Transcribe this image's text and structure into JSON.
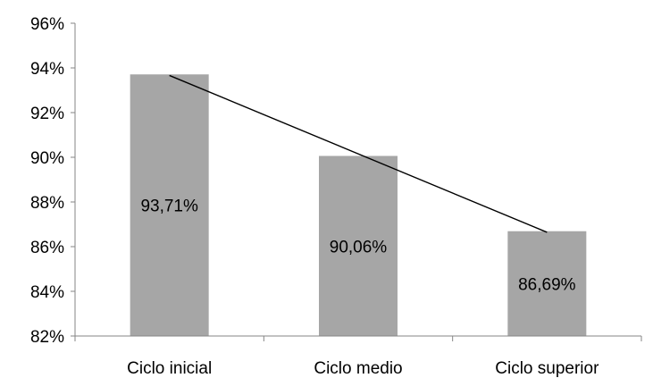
{
  "chart_data": {
    "type": "bar",
    "title": "",
    "xlabel": "",
    "ylabel": "",
    "categories": [
      "Ciclo inicial",
      "Ciclo medio",
      "Ciclo superior"
    ],
    "values": [
      93.71,
      90.06,
      86.69
    ],
    "data_labels": [
      "93,71%",
      "90,06%",
      "86,69%"
    ],
    "ylim": [
      82,
      96
    ],
    "y_ticks": [
      82,
      84,
      86,
      88,
      90,
      92,
      94,
      96
    ],
    "y_tick_labels": [
      "82%",
      "84%",
      "86%",
      "88%",
      "90%",
      "92%",
      "94%",
      "96%"
    ],
    "trendline": {
      "type": "linear"
    },
    "grid": false,
    "legend": "none",
    "colors": {
      "bar": "#a6a6a6",
      "axis": "#868686",
      "trendline": "#000000"
    }
  }
}
